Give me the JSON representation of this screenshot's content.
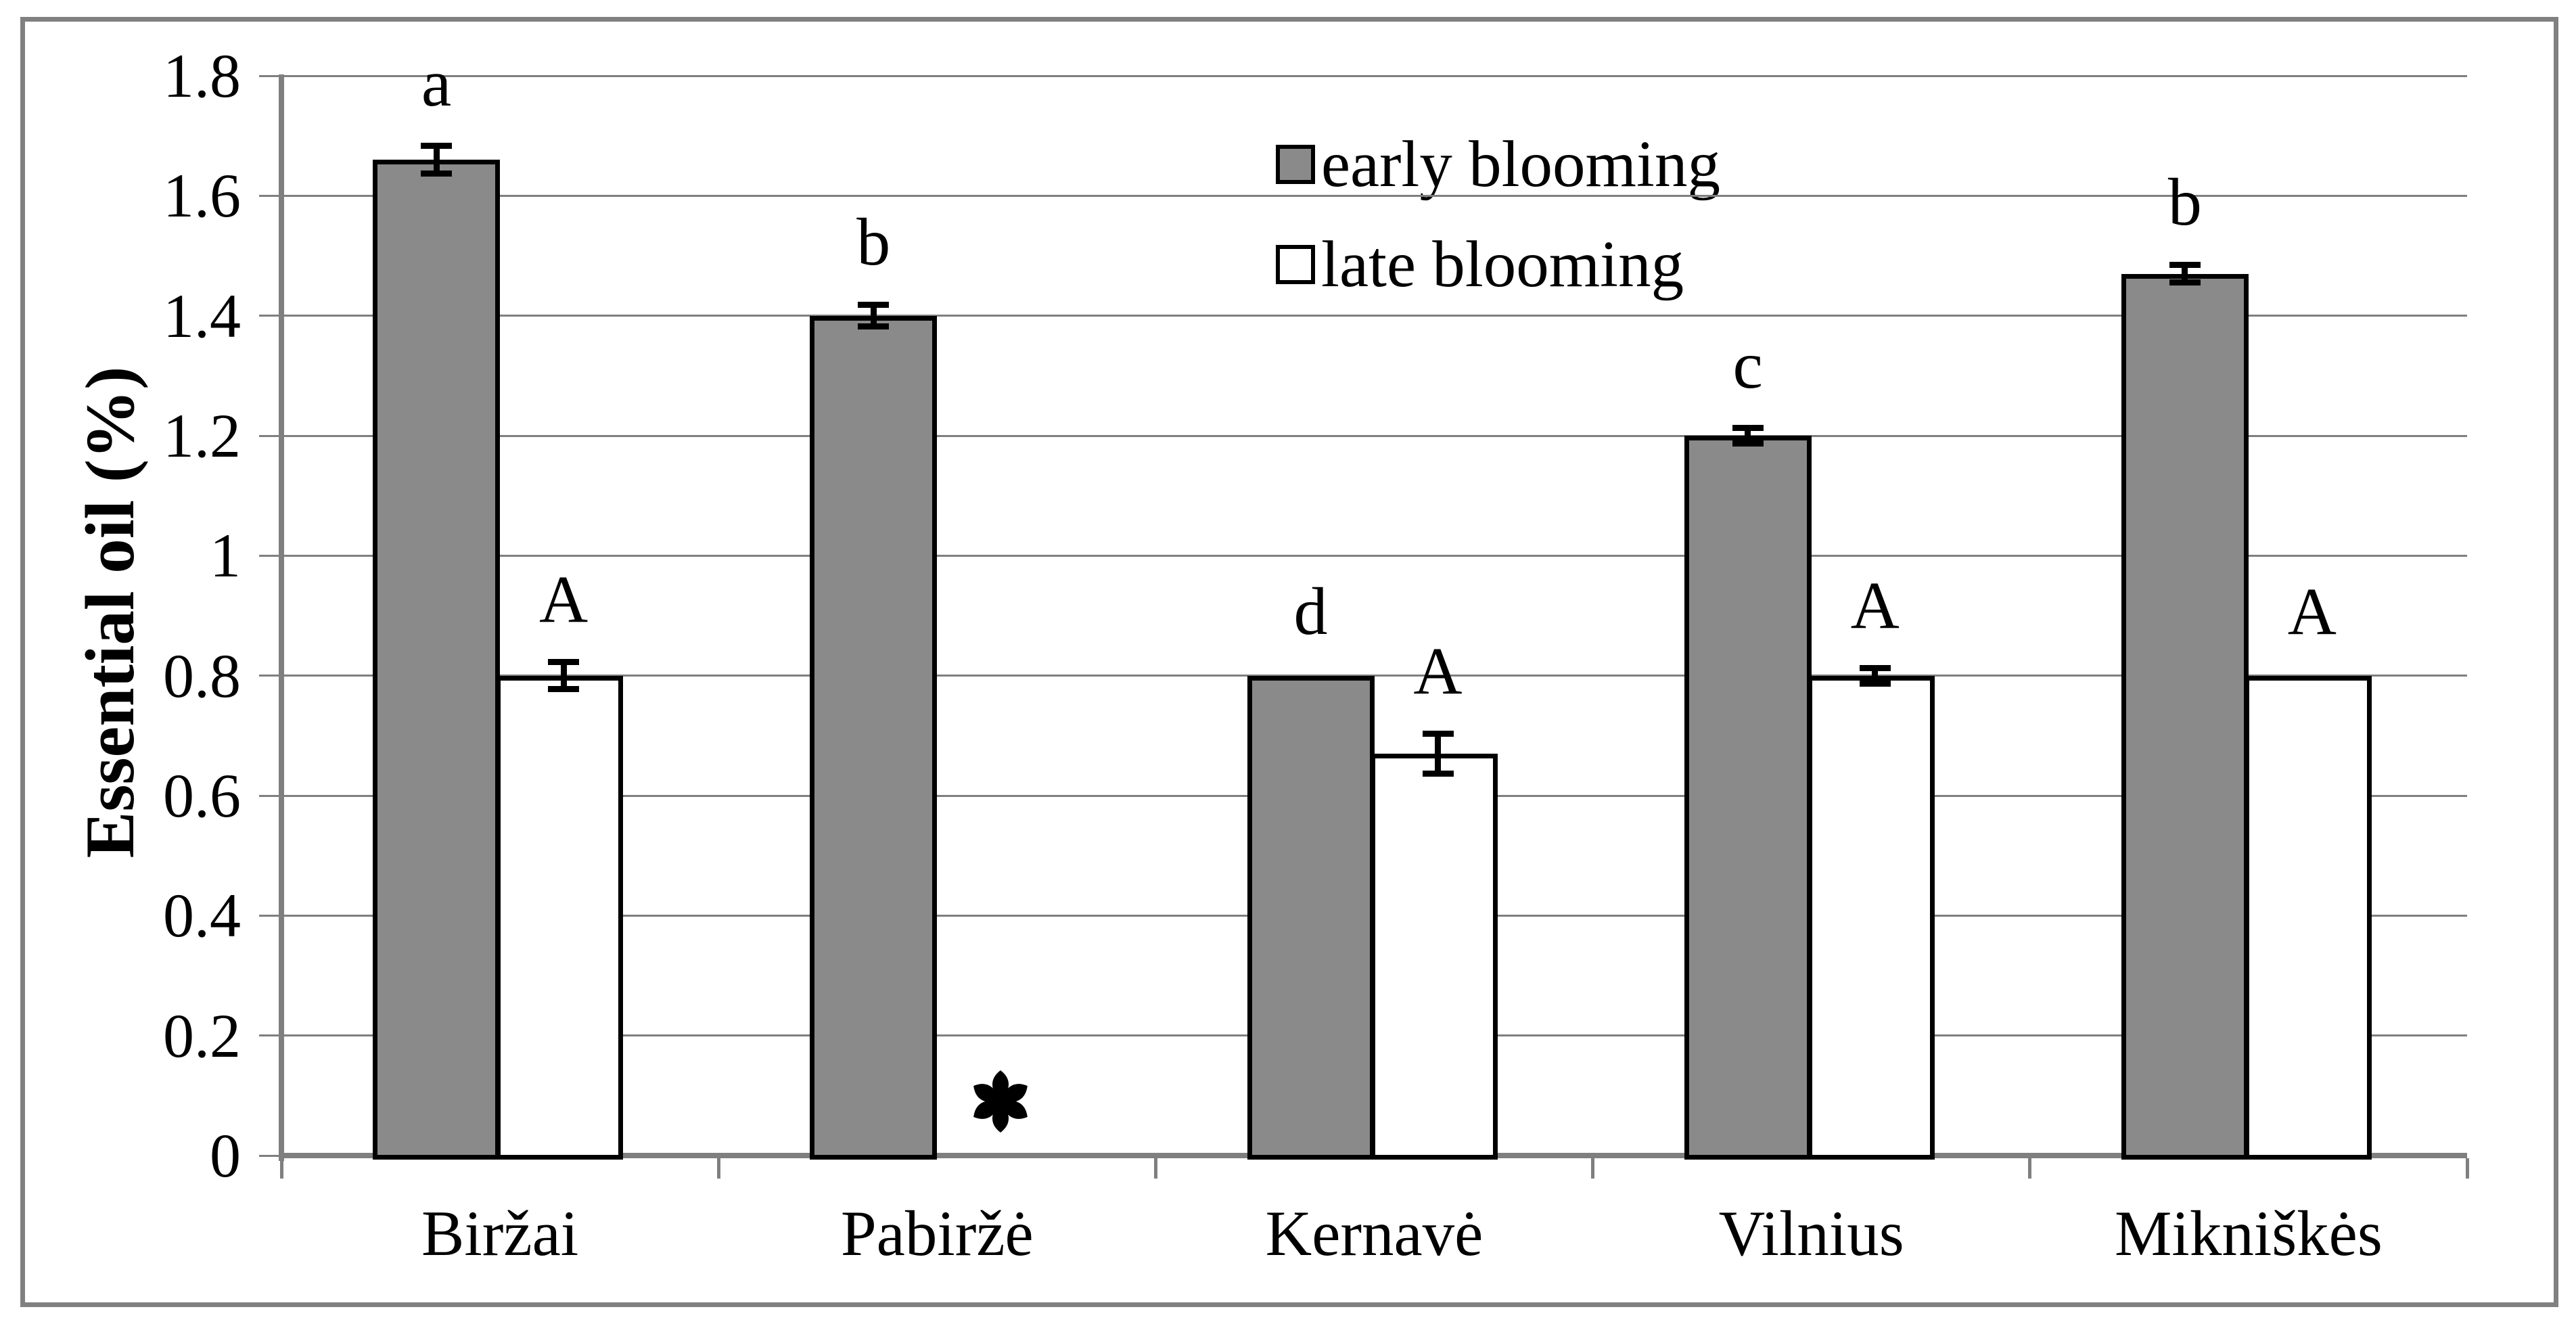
{
  "page": {
    "background": "#ffffff",
    "frame_color": "#808080"
  },
  "chart_data": {
    "type": "bar",
    "title": "",
    "xlabel": "",
    "ylabel": "Essential oil (%)",
    "ylim": [
      0,
      1.8
    ],
    "ytick_step": 0.2,
    "yticks": [
      "1.8",
      "1.6",
      "1.4",
      "1.2",
      "1",
      "0.8",
      "0.6",
      "0.4",
      "0.2",
      "0"
    ],
    "grid": true,
    "grid_color": "#7f7f7f",
    "axis_color": "#7f7f7f",
    "categories": [
      "Biržai",
      "Pabiržė",
      "Kernavė",
      "Vilnius",
      "Mikniškės"
    ],
    "series": [
      {
        "name": "early blooming",
        "fill": "#8a8a8a",
        "border": "#000000",
        "values": [
          1.66,
          1.4,
          0.8,
          1.2,
          1.47
        ],
        "errors": [
          0.02,
          0.015,
          0,
          0.01,
          0.012
        ],
        "sig_labels": [
          "a",
          "b",
          "d",
          "c",
          "b"
        ]
      },
      {
        "name": "late blooming",
        "fill": "#ffffff",
        "border": "#000000",
        "values": [
          0.8,
          null,
          0.67,
          0.8,
          0.8
        ],
        "errors": [
          0.02,
          null,
          0.03,
          0.01,
          0
        ],
        "sig_labels": [
          "A",
          null,
          "A",
          "A",
          "A"
        ]
      }
    ],
    "missing_value_marker": "*",
    "legend_position": "upper center, stacked vertically"
  }
}
